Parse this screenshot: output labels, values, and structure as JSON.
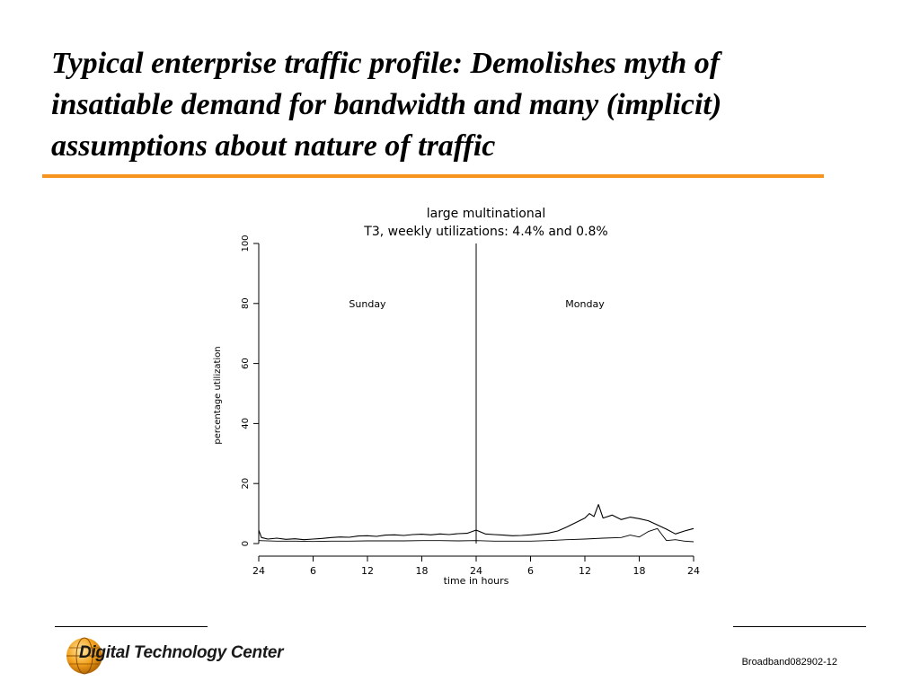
{
  "slide": {
    "title_lines": [
      "Typical enterprise traffic profile: Demolishes myth of",
      "insatiable demand for bandwidth and many (implicit)",
      "assumptions about nature of traffic"
    ],
    "accent_color": "#f7941d",
    "footer": {
      "logo_text": "Digital Technology Center",
      "slide_id": "Broadband082902-12"
    }
  },
  "chart_data": {
    "type": "line",
    "title_lines": [
      "large multinational",
      "T3, weekly utilizations: 4.4% and 0.8%"
    ],
    "xlabel": "time in hours",
    "ylabel": "percentage utilization",
    "x_tick_labels": [
      "24",
      "6",
      "12",
      "18",
      "24",
      "6",
      "12",
      "18",
      "24"
    ],
    "x_ticks": [
      0,
      6,
      12,
      18,
      24,
      30,
      36,
      42,
      48
    ],
    "xlim": [
      0,
      48
    ],
    "y_ticks": [
      0,
      20,
      40,
      60,
      80,
      100
    ],
    "ylim": [
      0,
      100
    ],
    "day_divider_x": 24,
    "annotations": [
      {
        "text": "Sunday",
        "x": 12,
        "y": 80
      },
      {
        "text": "Monday",
        "x": 36,
        "y": 80
      }
    ],
    "series": [
      {
        "values": [
          [
            0,
            4.5
          ],
          [
            0.3,
            2
          ],
          [
            1,
            1.5
          ],
          [
            2,
            1.8
          ],
          [
            3,
            1.4
          ],
          [
            4,
            1.6
          ],
          [
            5,
            1.3
          ],
          [
            6,
            1.5
          ],
          [
            7,
            1.7
          ],
          [
            8,
            2
          ],
          [
            9,
            2.2
          ],
          [
            10,
            2.1
          ],
          [
            11,
            2.5
          ],
          [
            12,
            2.6
          ],
          [
            13,
            2.4
          ],
          [
            14,
            2.8
          ],
          [
            15,
            2.9
          ],
          [
            16,
            2.7
          ],
          [
            17,
            3.0
          ],
          [
            18,
            3.1
          ],
          [
            19,
            2.9
          ],
          [
            20,
            3.2
          ],
          [
            21,
            3.0
          ],
          [
            22,
            3.3
          ],
          [
            23,
            3.4
          ],
          [
            24,
            4.5
          ],
          [
            25,
            3.2
          ],
          [
            26,
            3.0
          ],
          [
            27,
            2.8
          ],
          [
            28,
            2.6
          ],
          [
            29,
            2.7
          ],
          [
            30,
            2.9
          ],
          [
            31,
            3.2
          ],
          [
            32,
            3.5
          ],
          [
            33,
            4.2
          ],
          [
            34,
            5.5
          ],
          [
            35,
            7.0
          ],
          [
            36,
            8.5
          ],
          [
            36.5,
            10
          ],
          [
            37,
            9
          ],
          [
            37.5,
            13
          ],
          [
            38,
            8.5
          ],
          [
            39,
            9.5
          ],
          [
            40,
            8.0
          ],
          [
            41,
            8.8
          ],
          [
            42,
            8.3
          ],
          [
            43,
            7.6
          ],
          [
            44,
            6.2
          ],
          [
            45,
            4.8
          ],
          [
            46,
            3.2
          ],
          [
            47,
            4.2
          ],
          [
            48,
            5.0
          ]
        ]
      },
      {
        "values": [
          [
            0,
            1.0
          ],
          [
            2,
            0.8
          ],
          [
            4,
            0.8
          ],
          [
            6,
            0.7
          ],
          [
            8,
            0.8
          ],
          [
            10,
            0.8
          ],
          [
            12,
            0.9
          ],
          [
            14,
            0.9
          ],
          [
            16,
            0.9
          ],
          [
            18,
            1.0
          ],
          [
            20,
            1.0
          ],
          [
            22,
            0.9
          ],
          [
            24,
            1.0
          ],
          [
            26,
            0.8
          ],
          [
            28,
            0.8
          ],
          [
            30,
            0.8
          ],
          [
            32,
            1.0
          ],
          [
            34,
            1.3
          ],
          [
            36,
            1.5
          ],
          [
            38,
            1.8
          ],
          [
            40,
            2.0
          ],
          [
            41,
            2.8
          ],
          [
            42,
            2.2
          ],
          [
            43,
            4.0
          ],
          [
            44,
            5.0
          ],
          [
            44.5,
            3.0
          ],
          [
            45,
            1.0
          ],
          [
            46,
            1.3
          ],
          [
            47,
            0.8
          ],
          [
            48,
            0.6
          ]
        ]
      }
    ]
  }
}
